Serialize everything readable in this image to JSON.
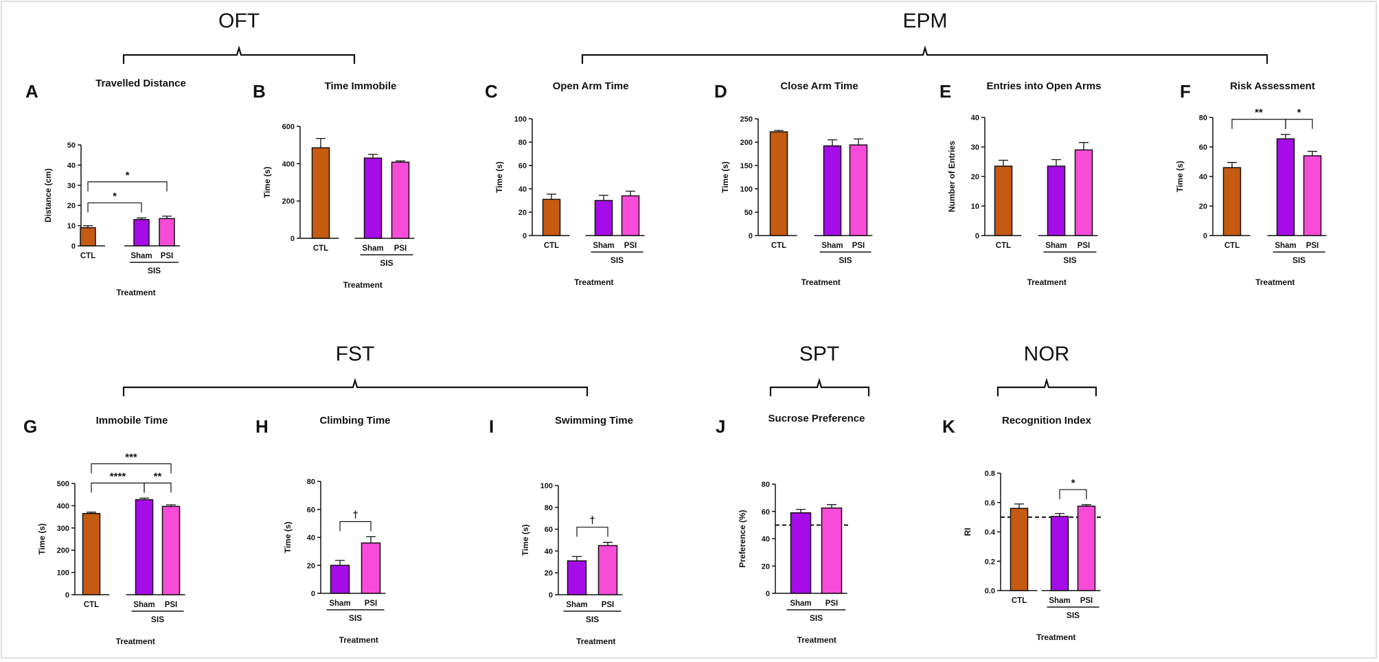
{
  "colors": {
    "CTL": "#C55A11",
    "Sham": "#A50CE8",
    "PSI": "#F74BD8"
  },
  "sections": [
    {
      "id": "oft",
      "title": "OFT"
    },
    {
      "id": "epm",
      "title": "EPM"
    },
    {
      "id": "fst",
      "title": "FST"
    },
    {
      "id": "spt",
      "title": "SPT"
    },
    {
      "id": "nor",
      "title": "NOR"
    }
  ],
  "chart_data": [
    {
      "id": "A",
      "letter": "A",
      "type": "bar",
      "title": "Travelled Distance",
      "ylabel": "Distance (cm)",
      "xlabel": "Treatment",
      "group_label": "SIS",
      "ylim": [
        0,
        50
      ],
      "yticks": [
        0,
        10,
        20,
        30,
        40,
        50
      ],
      "categories": [
        "CTL",
        "Sham",
        "PSI"
      ],
      "values": [
        9,
        13,
        13.5
      ],
      "errors": [
        1,
        0.8,
        1.2
      ],
      "significance": [
        {
          "from": 0,
          "to": 1,
          "label": "*"
        },
        {
          "from": 0,
          "to": 2,
          "label": "*"
        }
      ]
    },
    {
      "id": "B",
      "letter": "B",
      "type": "bar",
      "title": "Time Immobile",
      "ylabel": "Time (s)",
      "xlabel": "Treatment",
      "group_label": "SIS",
      "ylim": [
        0,
        600
      ],
      "yticks": [
        0,
        200,
        400,
        600
      ],
      "categories": [
        "CTL",
        "Sham",
        "PSI"
      ],
      "values": [
        485,
        430,
        408
      ],
      "errors": [
        50,
        20,
        7
      ],
      "significance": []
    },
    {
      "id": "C",
      "letter": "C",
      "type": "bar",
      "title": "Open Arm Time",
      "ylabel": "Time (s)",
      "xlabel": "Treatment",
      "group_label": "SIS",
      "ylim": [
        0,
        100
      ],
      "yticks": [
        0,
        20,
        40,
        60,
        80,
        100
      ],
      "categories": [
        "CTL",
        "Sham",
        "PSI"
      ],
      "values": [
        31,
        30,
        34
      ],
      "errors": [
        4.5,
        4.5,
        4
      ],
      "significance": []
    },
    {
      "id": "D",
      "letter": "D",
      "type": "bar",
      "title": "Close Arm Time",
      "ylabel": "Time (s)",
      "xlabel": "Treatment",
      "group_label": "SIS",
      "ylim": [
        0,
        250
      ],
      "yticks": [
        0,
        50,
        100,
        150,
        200,
        250
      ],
      "categories": [
        "CTL",
        "Sham",
        "PSI"
      ],
      "values": [
        222,
        192,
        194
      ],
      "errors": [
        3,
        13,
        13
      ],
      "significance": []
    },
    {
      "id": "E",
      "letter": "E",
      "type": "bar",
      "title": "Entries into Open Arms",
      "ylabel": "Number of Entries",
      "xlabel": "Treatment",
      "group_label": "SIS",
      "ylim": [
        0,
        40
      ],
      "yticks": [
        0,
        10,
        20,
        30,
        40
      ],
      "categories": [
        "CTL",
        "Sham",
        "PSI"
      ],
      "values": [
        23.5,
        23.5,
        29
      ],
      "errors": [
        2,
        2.2,
        2.5
      ],
      "significance": []
    },
    {
      "id": "F",
      "letter": "F",
      "type": "bar",
      "title": "Risk Assessment",
      "ylabel": "Time (s)",
      "xlabel": "Treatment",
      "group_label": "SIS",
      "ylim": [
        0,
        80
      ],
      "yticks": [
        0,
        20,
        40,
        60,
        80
      ],
      "categories": [
        "CTL",
        "Sham",
        "PSI"
      ],
      "values": [
        46,
        65.5,
        54
      ],
      "errors": [
        3.5,
        3,
        3
      ],
      "significance": [
        {
          "from": 0,
          "to": 1,
          "label": "**"
        },
        {
          "from": 1,
          "to": 2,
          "label": "*"
        }
      ]
    },
    {
      "id": "G",
      "letter": "G",
      "type": "bar",
      "title": "Immobile Time",
      "ylabel": "Time (s)",
      "xlabel": "Treatment",
      "group_label": "SIS",
      "ylim": [
        0,
        500
      ],
      "yticks": [
        0,
        100,
        200,
        300,
        400,
        500
      ],
      "categories": [
        "CTL",
        "Sham",
        "PSI"
      ],
      "values": [
        365,
        427,
        397
      ],
      "errors": [
        6,
        7,
        7
      ],
      "significance": [
        {
          "from": 0,
          "to": 1,
          "label": "****"
        },
        {
          "from": 1,
          "to": 2,
          "label": "**"
        },
        {
          "from": 0,
          "to": 2,
          "label": "***"
        }
      ]
    },
    {
      "id": "H",
      "letter": "H",
      "type": "bar",
      "title": "Climbing Time",
      "ylabel": "Time (s)",
      "xlabel": "Treatment",
      "group_label": "SIS",
      "ylim": [
        0,
        80
      ],
      "yticks": [
        0,
        20,
        40,
        60,
        80
      ],
      "categories": [
        "Sham",
        "PSI"
      ],
      "values": [
        20,
        36
      ],
      "errors": [
        3.5,
        4.5
      ],
      "significance": [
        {
          "from": 0,
          "to": 1,
          "label": "†"
        }
      ]
    },
    {
      "id": "I",
      "letter": "I",
      "type": "bar",
      "title": "Swimming Time",
      "ylabel": "Time (s)",
      "xlabel": "Treatment",
      "group_label": "SIS",
      "ylim": [
        0,
        100
      ],
      "yticks": [
        0,
        20,
        40,
        60,
        80,
        100
      ],
      "categories": [
        "Sham",
        "PSI"
      ],
      "values": [
        31,
        45
      ],
      "errors": [
        4,
        3
      ],
      "significance": [
        {
          "from": 0,
          "to": 1,
          "label": "†"
        }
      ]
    },
    {
      "id": "J",
      "letter": "J",
      "type": "bar",
      "title": "Sucrose Preference",
      "ylabel": "Preference (%)",
      "xlabel": "Treatment",
      "group_label": "SIS",
      "ylim": [
        0,
        80
      ],
      "yticks": [
        0,
        20,
        40,
        60,
        80
      ],
      "categories": [
        "Sham",
        "PSI"
      ],
      "values": [
        59,
        62.5
      ],
      "errors": [
        2.5,
        2.5
      ],
      "reference_line": 50,
      "significance": []
    },
    {
      "id": "K",
      "letter": "K",
      "type": "bar",
      "title": "Recognition Index",
      "ylabel": "RI",
      "xlabel": "Treatment",
      "group_label": "SIS",
      "ylim": [
        0,
        0.8
      ],
      "yticks": [
        "0.0",
        "0.2",
        "0.4",
        "0.6",
        "0.8"
      ],
      "categories": [
        "CTL",
        "Sham",
        "PSI"
      ],
      "values": [
        0.56,
        0.505,
        0.575
      ],
      "errors": [
        0.03,
        0.02,
        0.01
      ],
      "reference_line": 0.5,
      "significance": [
        {
          "from": 1,
          "to": 2,
          "label": "*"
        }
      ]
    }
  ]
}
